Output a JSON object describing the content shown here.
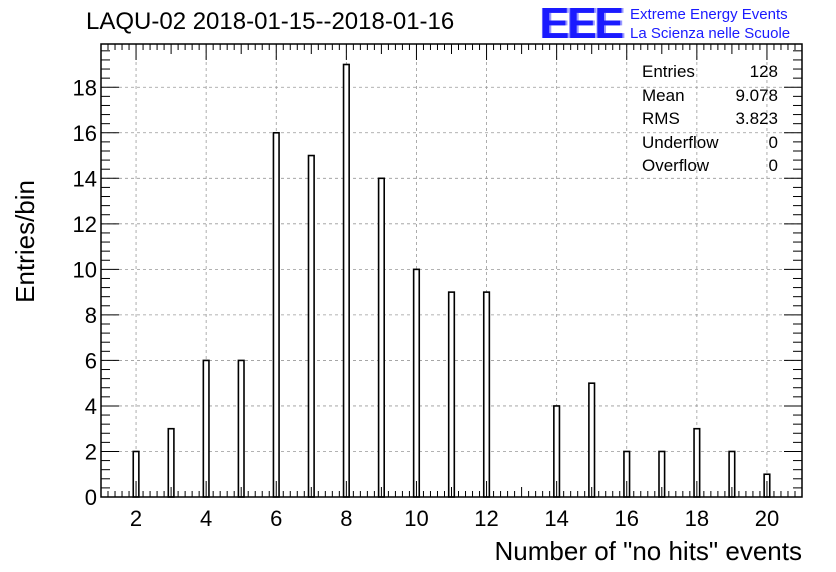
{
  "title": "LAQU-02 2018-01-15--2018-01-16",
  "logo": {
    "mark": "EEE",
    "line1": "Extreme Energy Events",
    "line2": "La Scienza nelle Scuole"
  },
  "stats": [
    {
      "label": "Entries",
      "value": "128"
    },
    {
      "label": "Mean",
      "value": "9.078"
    },
    {
      "label": "RMS",
      "value": "3.823"
    },
    {
      "label": "Underflow",
      "value": "0"
    },
    {
      "label": "Overflow",
      "value": "0"
    }
  ],
  "chart_data": {
    "type": "bar",
    "title": "LAQU-02 2018-01-15--2018-01-16",
    "xlabel": "Number of \"no hits\" events",
    "ylabel": "Entries/bin",
    "x": [
      2,
      3,
      4,
      5,
      6,
      7,
      8,
      9,
      10,
      11,
      12,
      14,
      15,
      16,
      17,
      18,
      19,
      20
    ],
    "values": [
      2,
      3,
      6,
      6,
      16,
      15,
      19,
      14,
      10,
      9,
      9,
      4,
      5,
      2,
      2,
      3,
      2,
      1
    ],
    "xlim": [
      1,
      21
    ],
    "ylim": [
      0,
      19.9
    ],
    "xticks": [
      2,
      4,
      6,
      8,
      10,
      12,
      14,
      16,
      18,
      20
    ],
    "yticks": [
      0,
      2,
      4,
      6,
      8,
      10,
      12,
      14,
      16,
      18
    ],
    "grid": true,
    "colors": {
      "bar_fill": "#ffffff",
      "bar_edge": "#000000",
      "grid": "#999999",
      "logo": "#1a1aff"
    }
  }
}
